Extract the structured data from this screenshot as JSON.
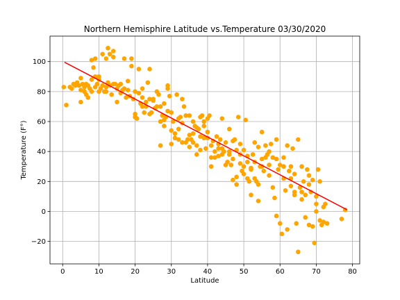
{
  "chart_data": {
    "type": "scatter",
    "title": "Northern Hemisphire Latitude vs.Temperature 03/30/2020",
    "xlabel": "Latitude",
    "ylabel": "Temperature (F°)",
    "xlim": [
      -3.5,
      82
    ],
    "ylim": [
      -35,
      117
    ],
    "xticks": [
      0,
      10,
      20,
      30,
      40,
      50,
      60,
      70,
      80
    ],
    "yticks": [
      -20,
      0,
      20,
      40,
      60,
      80,
      100
    ],
    "grid": true,
    "marker_color": "#FFA500",
    "regression": {
      "x": [
        0.5,
        78.5
      ],
      "y": [
        99.6,
        1.1
      ],
      "color": "#FF0000"
    },
    "points": [
      [
        0.3,
        83
      ],
      [
        1,
        71
      ],
      [
        2,
        83
      ],
      [
        2.5,
        82
      ],
      [
        3,
        85
      ],
      [
        3.5,
        84
      ],
      [
        4,
        86
      ],
      [
        4.5,
        84
      ],
      [
        5,
        73
      ],
      [
        5,
        89
      ],
      [
        5.5,
        85
      ],
      [
        6,
        83
      ],
      [
        6,
        80
      ],
      [
        6.5,
        78
      ],
      [
        6.5,
        85
      ],
      [
        7,
        76
      ],
      [
        7,
        84
      ],
      [
        7.5,
        82
      ],
      [
        8,
        88
      ],
      [
        8,
        101
      ],
      [
        8.5,
        96
      ],
      [
        9,
        90
      ],
      [
        9,
        102
      ],
      [
        9,
        83
      ],
      [
        9.5,
        85
      ],
      [
        10,
        90
      ],
      [
        10,
        80
      ],
      [
        10.5,
        82
      ],
      [
        11,
        84
      ],
      [
        11,
        105
      ],
      [
        11.5,
        80
      ],
      [
        12,
        83
      ],
      [
        12,
        102
      ],
      [
        12.5,
        86
      ],
      [
        12.5,
        109
      ],
      [
        13,
        105
      ],
      [
        13,
        84
      ],
      [
        13.5,
        78
      ],
      [
        14,
        107
      ],
      [
        14,
        103
      ],
      [
        14.5,
        85
      ],
      [
        15,
        82
      ],
      [
        15,
        73
      ],
      [
        15.5,
        84
      ],
      [
        16,
        85
      ],
      [
        16.5,
        81
      ],
      [
        17,
        82
      ],
      [
        17,
        102
      ],
      [
        17.5,
        76
      ],
      [
        18,
        81
      ],
      [
        18,
        87
      ],
      [
        18.5,
        77
      ],
      [
        19,
        97
      ],
      [
        19,
        102
      ],
      [
        19.5,
        75
      ],
      [
        20,
        65
      ],
      [
        20,
        80
      ],
      [
        20.5,
        62
      ],
      [
        21,
        79
      ],
      [
        21,
        95
      ],
      [
        21.5,
        72
      ],
      [
        22,
        76
      ],
      [
        22,
        82
      ],
      [
        22.5,
        66
      ],
      [
        23,
        70
      ],
      [
        23,
        73
      ],
      [
        23.5,
        86
      ],
      [
        24,
        65
      ],
      [
        24,
        95
      ],
      [
        24.5,
        66
      ],
      [
        25,
        74
      ],
      [
        25,
        75
      ],
      [
        25.5,
        69
      ],
      [
        26,
        80
      ],
      [
        26.5,
        78
      ],
      [
        27,
        70
      ],
      [
        27,
        44
      ],
      [
        27.5,
        64
      ],
      [
        28,
        61
      ],
      [
        28,
        57
      ],
      [
        28.5,
        63
      ],
      [
        29,
        84
      ],
      [
        29,
        82
      ],
      [
        29.5,
        77
      ],
      [
        30,
        54
      ],
      [
        30,
        45
      ],
      [
        30.5,
        60
      ],
      [
        31,
        52
      ],
      [
        31.5,
        78
      ],
      [
        32,
        55
      ],
      [
        32,
        48
      ],
      [
        32.5,
        63
      ],
      [
        33,
        75
      ],
      [
        33,
        59
      ],
      [
        33.5,
        70
      ],
      [
        34,
        64
      ],
      [
        34,
        46
      ],
      [
        34.5,
        48
      ],
      [
        35,
        64
      ],
      [
        35,
        43
      ],
      [
        35.5,
        48
      ],
      [
        36,
        52
      ],
      [
        36,
        60
      ],
      [
        36.5,
        57
      ],
      [
        37,
        38
      ],
      [
        37,
        44
      ],
      [
        37.5,
        55
      ],
      [
        38,
        63
      ],
      [
        38,
        41
      ],
      [
        38.5,
        64
      ],
      [
        39,
        60
      ],
      [
        39,
        49
      ],
      [
        39.5,
        42
      ],
      [
        40,
        62
      ],
      [
        40,
        53
      ],
      [
        40.5,
        64
      ],
      [
        41,
        30
      ],
      [
        41,
        44
      ],
      [
        41.5,
        47
      ],
      [
        42,
        40
      ],
      [
        42,
        36
      ],
      [
        42.5,
        50
      ],
      [
        43,
        42
      ],
      [
        43,
        37
      ],
      [
        43.5,
        48
      ],
      [
        44,
        42
      ],
      [
        44,
        62
      ],
      [
        44.5,
        40
      ],
      [
        45,
        46
      ],
      [
        45,
        31
      ],
      [
        45.5,
        33
      ],
      [
        46,
        38
      ],
      [
        46,
        55
      ],
      [
        46.5,
        31
      ],
      [
        47,
        35
      ],
      [
        47,
        21
      ],
      [
        47.5,
        48
      ],
      [
        48,
        41
      ],
      [
        48,
        18
      ],
      [
        48.5,
        63
      ],
      [
        49,
        38
      ],
      [
        49,
        32
      ],
      [
        49.5,
        27
      ],
      [
        50,
        41
      ],
      [
        50,
        25
      ],
      [
        50.5,
        61
      ],
      [
        51,
        33
      ],
      [
        51,
        22
      ],
      [
        51.5,
        20
      ],
      [
        52,
        28
      ],
      [
        52,
        11
      ],
      [
        52.5,
        38
      ],
      [
        53,
        46
      ],
      [
        53,
        33
      ],
      [
        53.5,
        20
      ],
      [
        54,
        43
      ],
      [
        54,
        7
      ],
      [
        54.5,
        30
      ],
      [
        55,
        35
      ],
      [
        55,
        53
      ],
      [
        55.5,
        27
      ],
      [
        56,
        44
      ],
      [
        56,
        36
      ],
      [
        56.5,
        38
      ],
      [
        57,
        40
      ],
      [
        57,
        31
      ],
      [
        57.5,
        45
      ],
      [
        58,
        36
      ],
      [
        58,
        16
      ],
      [
        58.5,
        9
      ],
      [
        59,
        48
      ],
      [
        59,
        -3
      ],
      [
        59.5,
        28
      ],
      [
        60,
        31
      ],
      [
        60,
        -8
      ],
      [
        60.5,
        -15
      ],
      [
        61,
        36
      ],
      [
        61,
        22
      ],
      [
        61.5,
        14
      ],
      [
        62,
        44
      ],
      [
        62,
        -12
      ],
      [
        62.5,
        27
      ],
      [
        63,
        17
      ],
      [
        63,
        30
      ],
      [
        63.5,
        42
      ],
      [
        64,
        11
      ],
      [
        64,
        25
      ],
      [
        64.5,
        -8
      ],
      [
        65,
        48
      ],
      [
        65,
        -27
      ],
      [
        65.5,
        16
      ],
      [
        66,
        8
      ],
      [
        66,
        30
      ],
      [
        66.5,
        20
      ],
      [
        67,
        11
      ],
      [
        67,
        -4
      ],
      [
        67.5,
        28
      ],
      [
        68,
        -9
      ],
      [
        68,
        18
      ],
      [
        68.5,
        13
      ],
      [
        69,
        -10
      ],
      [
        69,
        21
      ],
      [
        69.5,
        -21
      ],
      [
        70,
        0
      ],
      [
        70,
        5
      ],
      [
        70.5,
        28
      ],
      [
        71,
        -6
      ],
      [
        71,
        20
      ],
      [
        71.5,
        -9
      ],
      [
        72,
        3
      ],
      [
        72,
        -7
      ],
      [
        72.5,
        5
      ],
      [
        73,
        -8
      ],
      [
        77,
        -5
      ],
      [
        78,
        1
      ],
      [
        55,
        30
      ],
      [
        50,
        30
      ],
      [
        48,
        23
      ],
      [
        46,
        40
      ],
      [
        44,
        38
      ],
      [
        39,
        57
      ],
      [
        38,
        50
      ],
      [
        36,
        46
      ],
      [
        33,
        46
      ],
      [
        31,
        49
      ],
      [
        29,
        67
      ],
      [
        26,
        70
      ],
      [
        24,
        75
      ],
      [
        22,
        70
      ],
      [
        20,
        63
      ],
      [
        16,
        79
      ],
      [
        14,
        85
      ],
      [
        12,
        80
      ],
      [
        10,
        88
      ],
      [
        8,
        80
      ],
      [
        6,
        80
      ],
      [
        5,
        81
      ],
      [
        51,
        37
      ],
      [
        57,
        24
      ],
      [
        59,
        35
      ],
      [
        61,
        30
      ],
      [
        63,
        22
      ],
      [
        64,
        13
      ],
      [
        66,
        13
      ],
      [
        68,
        24
      ],
      [
        70,
        10
      ],
      [
        52,
        29
      ],
      [
        54,
        18
      ],
      [
        53,
        22
      ],
      [
        49,
        45
      ],
      [
        47,
        47
      ],
      [
        43,
        45
      ],
      [
        41,
        36
      ],
      [
        40,
        49
      ],
      [
        37,
        56
      ],
      [
        35,
        51
      ],
      [
        32,
        62
      ],
      [
        30,
        66
      ],
      [
        28,
        72
      ],
      [
        27,
        60
      ]
    ]
  }
}
